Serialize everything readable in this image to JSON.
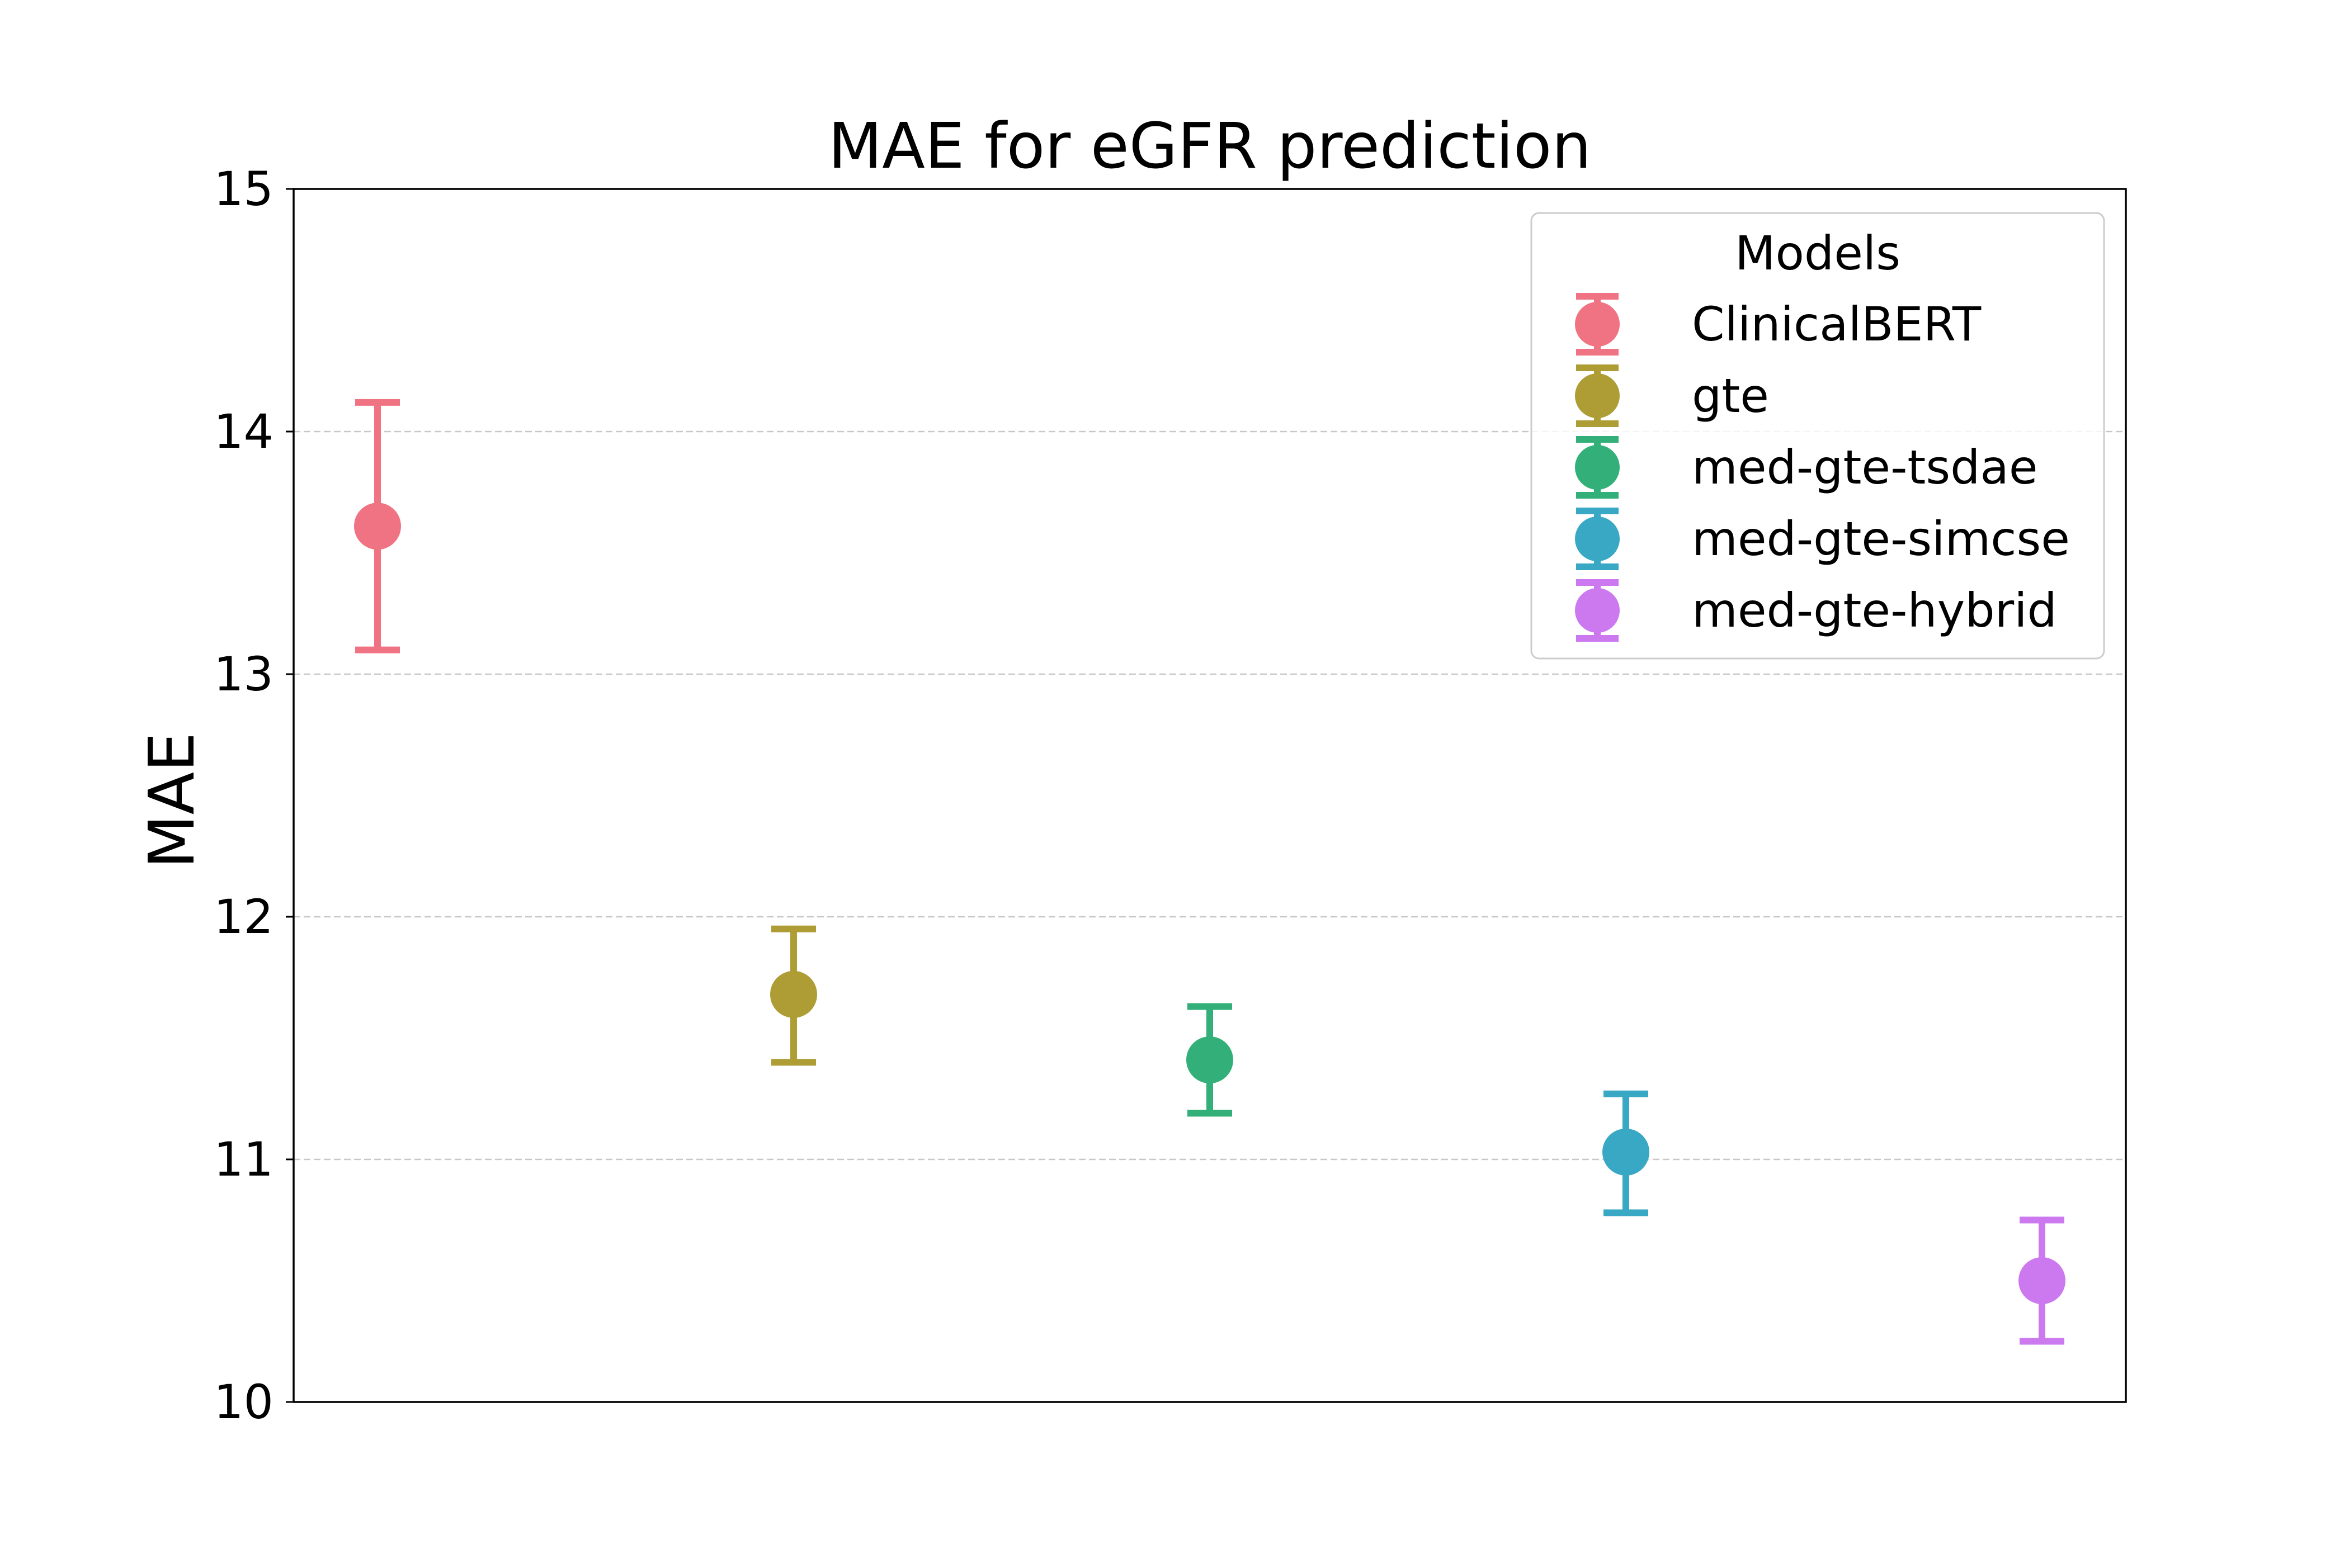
{
  "chart_data": {
    "type": "scatter",
    "title": "MAE for eGFR prediction",
    "xlabel": "",
    "ylabel": "MAE",
    "ylim": [
      10,
      15
    ],
    "yticks": [
      "10",
      "11",
      "12",
      "13",
      "14",
      "15"
    ],
    "grid": "horizontal dashed",
    "legend": {
      "title": "Models",
      "position": "top-right"
    },
    "series": [
      {
        "name": "ClinicalBERT",
        "value": 13.61,
        "lower": 13.1,
        "upper": 14.12,
        "color": "#f07383"
      },
      {
        "name": "gte",
        "value": 11.68,
        "lower": 11.4,
        "upper": 11.95,
        "color": "#ae9c35"
      },
      {
        "name": "med-gte-tsdae",
        "value": 11.41,
        "lower": 11.19,
        "upper": 11.63,
        "color": "#33b07a"
      },
      {
        "name": "med-gte-simcse",
        "value": 11.03,
        "lower": 10.78,
        "upper": 11.27,
        "color": "#38a8c4"
      },
      {
        "name": "med-gte-hybrid",
        "value": 10.5,
        "lower": 10.25,
        "upper": 10.75,
        "color": "#cc79f0"
      }
    ]
  }
}
